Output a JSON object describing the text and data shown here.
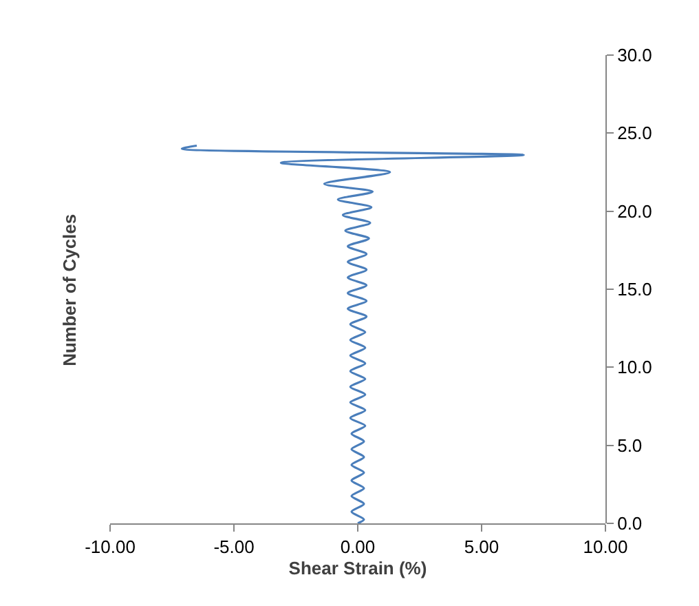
{
  "chart_data": {
    "type": "line",
    "xlabel": "Shear Strain (%)",
    "ylabel": "Number of Cycles",
    "series": [
      {
        "color": "#4a7ebb",
        "x": [
          0,
          0.25,
          -0.25,
          0.25,
          -0.25,
          0.25,
          -0.25,
          0.25,
          -0.25,
          0.25,
          -0.25,
          0.25,
          -0.25,
          0.3,
          -0.3,
          0.3,
          -0.3,
          0.3,
          -0.3,
          0.3,
          -0.3,
          0.3,
          -0.3,
          0.3,
          -0.3,
          0.3,
          -0.3,
          0.35,
          -0.4,
          0.35,
          -0.4,
          0.35,
          -0.4,
          0.35,
          -0.4,
          0.35,
          -0.4,
          0.45,
          -0.5,
          0.5,
          -0.6,
          0.55,
          -0.8,
          0.6,
          -1.35,
          1.3,
          -3.1,
          6.7,
          -7.1,
          -6.5
        ],
        "values": [
          0,
          0.25,
          0.75,
          1.25,
          1.75,
          2.25,
          2.75,
          3.25,
          3.75,
          4.25,
          4.75,
          5.25,
          5.75,
          6.25,
          6.75,
          7.25,
          7.75,
          8.25,
          8.75,
          9.25,
          9.75,
          10.25,
          10.75,
          11.25,
          11.75,
          12.25,
          12.75,
          13.25,
          13.75,
          14.25,
          14.75,
          15.25,
          15.75,
          16.25,
          16.75,
          17.25,
          17.75,
          18.25,
          18.75,
          19.25,
          19.75,
          20.25,
          20.75,
          21.25,
          21.75,
          22.5,
          23.1,
          23.6,
          24.0,
          24.2
        ]
      }
    ],
    "xlim": [
      -10,
      10
    ],
    "xticks": [
      {
        "value": -10,
        "label": "-10.00"
      },
      {
        "value": -5,
        "label": "-5.00"
      },
      {
        "value": 0,
        "label": "0.00"
      },
      {
        "value": 5,
        "label": "5.00"
      },
      {
        "value": 10,
        "label": "10.00"
      }
    ],
    "ylim": [
      0,
      30
    ],
    "yticks": [
      {
        "value": 0,
        "label": "0.0"
      },
      {
        "value": 5,
        "label": "5.0"
      },
      {
        "value": 10,
        "label": "10.0"
      },
      {
        "value": 15,
        "label": "15.0"
      },
      {
        "value": 20,
        "label": "20.0"
      },
      {
        "value": 25,
        "label": "25.0"
      },
      {
        "value": 30,
        "label": "30.0"
      }
    ],
    "marker": "none",
    "line_style": "solid"
  }
}
